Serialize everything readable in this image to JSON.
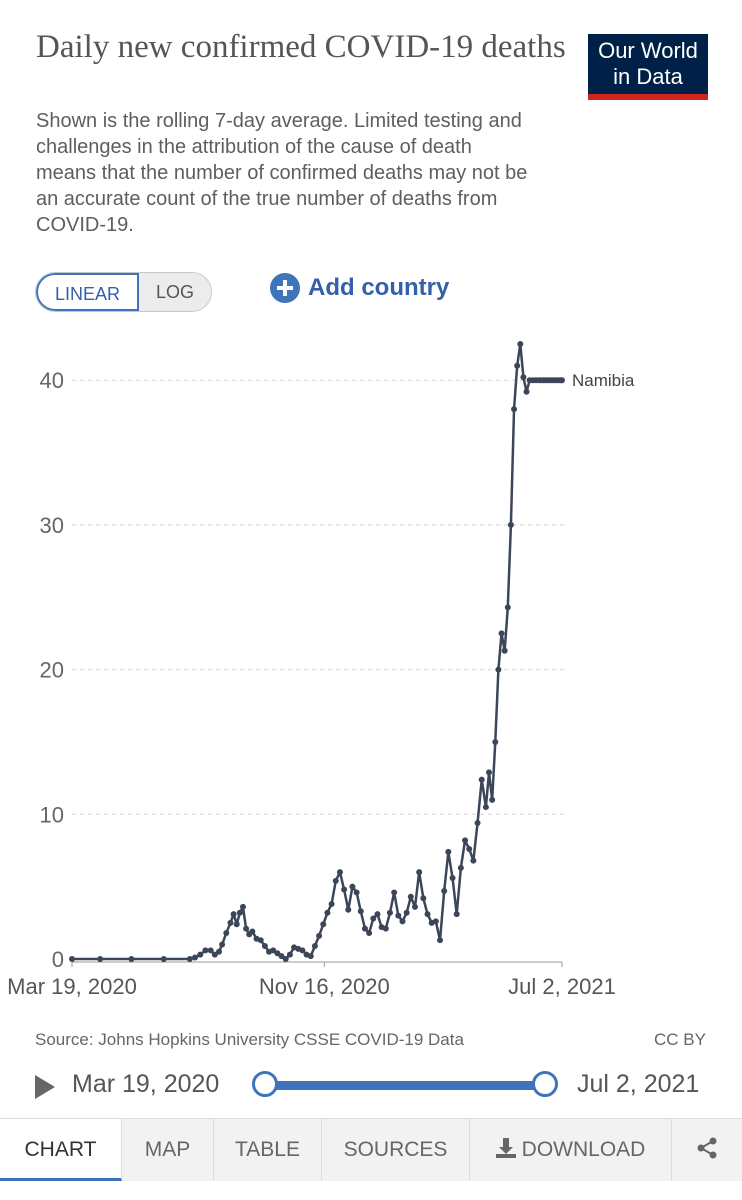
{
  "header": {
    "title": "Daily new confirmed COVID-19 deaths",
    "subtitle": "Shown is the rolling 7-day average. Limited testing and challenges in the attribution of the cause of death means that the number of confirmed deaths may not be an accurate count of the true number of deaths from COVID-19.",
    "logo_line1": "Our World",
    "logo_line2": "in Data"
  },
  "controls": {
    "linear_label": "LINEAR",
    "log_label": "LOG",
    "add_country_label": "Add country"
  },
  "chart_data": {
    "type": "line",
    "title": "Daily new confirmed COVID-19 deaths",
    "xlabel": "",
    "ylabel": "",
    "ylim": [
      0,
      42
    ],
    "yticks": [
      0,
      10,
      20,
      30,
      40
    ],
    "xtick_labels": [
      "Mar 19, 2020",
      "Nov 16, 2020",
      "Jul 2, 2021"
    ],
    "xrange": [
      "2020-03-19",
      "2021-07-02"
    ],
    "grid": true,
    "series": [
      {
        "name": "Namibia",
        "color": "#3c4659",
        "x": [
          "2020-03-19",
          "2020-04-15",
          "2020-05-15",
          "2020-06-15",
          "2020-07-10",
          "2020-07-15",
          "2020-07-20",
          "2020-07-25",
          "2020-07-30",
          "2020-08-03",
          "2020-08-07",
          "2020-08-10",
          "2020-08-14",
          "2020-08-18",
          "2020-08-21",
          "2020-08-24",
          "2020-08-27",
          "2020-08-30",
          "2020-09-02",
          "2020-09-05",
          "2020-09-08",
          "2020-09-12",
          "2020-09-16",
          "2020-09-20",
          "2020-09-24",
          "2020-09-28",
          "2020-10-02",
          "2020-10-06",
          "2020-10-10",
          "2020-10-14",
          "2020-10-18",
          "2020-10-22",
          "2020-10-26",
          "2020-10-30",
          "2020-11-03",
          "2020-11-07",
          "2020-11-11",
          "2020-11-15",
          "2020-11-19",
          "2020-11-23",
          "2020-11-27",
          "2020-12-01",
          "2020-12-05",
          "2020-12-09",
          "2020-12-13",
          "2020-12-17",
          "2020-12-21",
          "2020-12-25",
          "2020-12-29",
          "2021-01-02",
          "2021-01-06",
          "2021-01-10",
          "2021-01-14",
          "2021-01-18",
          "2021-01-22",
          "2021-01-26",
          "2021-01-30",
          "2021-02-03",
          "2021-02-07",
          "2021-02-11",
          "2021-02-15",
          "2021-02-19",
          "2021-02-23",
          "2021-02-27",
          "2021-03-03",
          "2021-03-07",
          "2021-03-11",
          "2021-03-15",
          "2021-03-19",
          "2021-03-23",
          "2021-03-27",
          "2021-03-31",
          "2021-04-04",
          "2021-04-08",
          "2021-04-12",
          "2021-04-16",
          "2021-04-20",
          "2021-04-23",
          "2021-04-26",
          "2021-04-29",
          "2021-05-02",
          "2021-05-05",
          "2021-05-08",
          "2021-05-11",
          "2021-05-14",
          "2021-05-17",
          "2021-05-20",
          "2021-05-23",
          "2021-05-26",
          "2021-05-29",
          "2021-06-01",
          "2021-06-04",
          "2021-06-07",
          "2021-06-10",
          "2021-06-12",
          "2021-06-14",
          "2021-06-16",
          "2021-06-18",
          "2021-06-20",
          "2021-06-22",
          "2021-06-24",
          "2021-06-26",
          "2021-06-28",
          "2021-06-30",
          "2021-07-01",
          "2021-07-02"
        ],
        "y": [
          0,
          0,
          0,
          0,
          0,
          0.1,
          0.3,
          0.6,
          0.6,
          0.3,
          0.5,
          1.0,
          1.8,
          2.5,
          3.1,
          2.4,
          3.2,
          3.6,
          2.1,
          1.7,
          1.9,
          1.4,
          1.3,
          0.9,
          0.5,
          0.6,
          0.4,
          0.2,
          0.0,
          0.3,
          0.8,
          0.7,
          0.6,
          0.3,
          0.2,
          0.9,
          1.6,
          2.4,
          3.2,
          3.8,
          5.4,
          6.0,
          4.8,
          3.4,
          5.0,
          4.6,
          3.3,
          2.1,
          1.8,
          2.8,
          3.1,
          2.2,
          2.1,
          3.2,
          4.6,
          3.0,
          2.6,
          3.2,
          4.3,
          3.6,
          6.0,
          4.2,
          3.1,
          2.5,
          2.6,
          1.3,
          4.7,
          7.4,
          5.6,
          3.1,
          6.3,
          8.2,
          7.6,
          6.8,
          9.4,
          12.4,
          10.5,
          12.9,
          11.0,
          15.0,
          20.0,
          22.5,
          21.3,
          24.3,
          30.0,
          38.0,
          41.0,
          42.5,
          40.2,
          39.2,
          40.0,
          40.0,
          40.0,
          40.0,
          40.0,
          40.0,
          40.0,
          40.0,
          40.0,
          40.0,
          40.0,
          40.0,
          40.0,
          40.0,
          40.0,
          40.0
        ]
      }
    ]
  },
  "footer": {
    "source": "Source: Johns Hopkins University CSSE COVID-19 Data",
    "license": "CC BY",
    "timeline_start": "Mar 19, 2020",
    "timeline_end": "Jul 2, 2021"
  },
  "tabs": [
    {
      "label": "CHART"
    },
    {
      "label": "MAP"
    },
    {
      "label": "TABLE"
    },
    {
      "label": "SOURCES"
    },
    {
      "label": "DOWNLOAD"
    }
  ]
}
